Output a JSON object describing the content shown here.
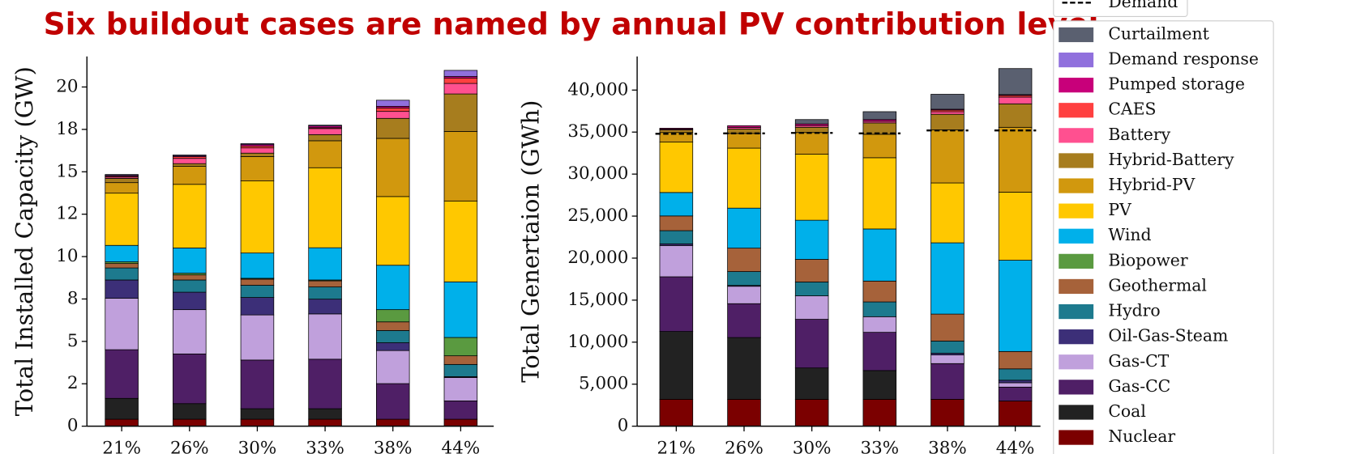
{
  "title": "Six buildout cases are named by annual PV contribution level",
  "chart_data": [
    {
      "type": "bar",
      "stacked": true,
      "ylabel": "Total Installed Capacity (GW)",
      "categories": [
        "21%",
        "26%",
        "30%",
        "33%",
        "38%",
        "44%"
      ],
      "ylim": [
        0,
        21.8
      ],
      "yticks": [
        0,
        {
          "value": 2.5,
          "label": "2"
        },
        5,
        {
          "value": 7.5,
          "label": "8"
        },
        10,
        {
          "value": 12.5,
          "label": "12"
        },
        15,
        {
          "value": 17.5,
          "label": "18"
        },
        20
      ],
      "series": [
        {
          "name": "Nuclear",
          "color": "#7b0000",
          "values": [
            0.41,
            0.41,
            0.41,
            0.41,
            0.41,
            0.41
          ]
        },
        {
          "name": "Coal",
          "color": "#222222",
          "values": [
            1.23,
            0.92,
            0.62,
            0.62,
            0,
            0
          ]
        },
        {
          "name": "Gas-CC",
          "color": "#4f1f66",
          "values": [
            2.87,
            2.93,
            2.87,
            2.92,
            2.1,
            1.08
          ]
        },
        {
          "name": "Gas-CT",
          "color": "#c0a0dc",
          "values": [
            3.03,
            2.61,
            2.66,
            2.67,
            1.95,
            1.38
          ]
        },
        {
          "name": "Oil-Gas-Steam",
          "color": "#3c2f78",
          "values": [
            1.08,
            1.03,
            1.03,
            0.87,
            0.46,
            0.05
          ]
        },
        {
          "name": "Hydro",
          "color": "#1d7a8e",
          "values": [
            0.71,
            0.72,
            0.72,
            0.72,
            0.72,
            0.72
          ]
        },
        {
          "name": "Geothermal",
          "color": "#a6623a",
          "values": [
            0.26,
            0.3,
            0.36,
            0.36,
            0.51,
            0.51
          ]
        },
        {
          "name": "Biopower",
          "color": "#5a9a40",
          "values": [
            0.1,
            0.1,
            0.05,
            0.05,
            0.72,
            1.08
          ]
        },
        {
          "name": "Wind",
          "color": "#00b0ea",
          "values": [
            0.97,
            1.49,
            1.49,
            1.9,
            2.62,
            3.28
          ]
        },
        {
          "name": "PV",
          "color": "#ffc800",
          "values": [
            3.08,
            3.75,
            4.25,
            4.72,
            4.05,
            4.77
          ]
        },
        {
          "name": "Hybrid-PV",
          "color": "#d1980e",
          "values": [
            0.62,
            1.07,
            1.44,
            1.59,
            3.43,
            4.1
          ]
        },
        {
          "name": "Hybrid-Battery",
          "color": "#a77d1e",
          "values": [
            0.25,
            0.15,
            0.2,
            0.36,
            1.18,
            2.21
          ]
        },
        {
          "name": "Battery",
          "color": "#ff5090",
          "values": [
            0.08,
            0.31,
            0.31,
            0.36,
            0.41,
            0.62
          ]
        },
        {
          "name": "CAES",
          "color": "#ff4040",
          "values": [
            0.05,
            0.1,
            0.1,
            0.05,
            0.2,
            0.31
          ]
        },
        {
          "name": "Pumped storage",
          "color": "#c8007a",
          "values": [
            0.05,
            0.05,
            0.1,
            0.1,
            0.1,
            0.1
          ]
        },
        {
          "name": "Demand response",
          "color": "#9070dd",
          "values": [
            0.05,
            0.05,
            0.05,
            0.05,
            0.36,
            0.36
          ]
        }
      ]
    },
    {
      "type": "bar",
      "stacked": true,
      "ylabel": "Total Genertaion (GWh)",
      "categories": [
        "21%",
        "26%",
        "30%",
        "33%",
        "38%",
        "44%"
      ],
      "ylim": [
        0,
        44000
      ],
      "yticks": [
        0,
        {
          "value": 5000,
          "label": "5,000"
        },
        {
          "value": 10000,
          "label": "10,000"
        },
        {
          "value": 15000,
          "label": "15,000"
        },
        {
          "value": 20000,
          "label": "20,000"
        },
        {
          "value": 25000,
          "label": "25,000"
        },
        {
          "value": 30000,
          "label": "30,000"
        },
        {
          "value": 35000,
          "label": "35,000"
        },
        {
          "value": 40000,
          "label": "40,000"
        }
      ],
      "series": [
        {
          "name": "Nuclear",
          "color": "#7b0000",
          "values": [
            3200,
            3200,
            3200,
            3200,
            3200,
            3000
          ]
        },
        {
          "name": "Coal",
          "color": "#222222",
          "values": [
            8070,
            7350,
            3730,
            3420,
            0,
            0
          ]
        },
        {
          "name": "Gas-CC",
          "color": "#4f1f66",
          "values": [
            6510,
            4030,
            5790,
            4550,
            4250,
            1650
          ]
        },
        {
          "name": "Gas-CT",
          "color": "#c0a0dc",
          "values": [
            3720,
            2070,
            2790,
            1860,
            1030,
            520
          ]
        },
        {
          "name": "Oil-Gas-Steam",
          "color": "#3c2f78",
          "values": [
            200,
            100,
            0,
            0,
            200,
            300
          ]
        },
        {
          "name": "Hydro",
          "color": "#1d7a8e",
          "values": [
            1570,
            1650,
            1650,
            1760,
            1450,
            1350
          ]
        },
        {
          "name": "Geothermal",
          "color": "#a6623a",
          "values": [
            1750,
            2790,
            2690,
            2480,
            3210,
            2070
          ]
        },
        {
          "name": "Biopower",
          "color": "#5a9a40",
          "values": [
            0,
            0,
            0,
            0,
            0,
            0
          ]
        },
        {
          "name": "Wind",
          "color": "#00b0ea",
          "values": [
            2790,
            4760,
            4660,
            6200,
            8480,
            10860
          ]
        },
        {
          "name": "PV",
          "color": "#ffc800",
          "values": [
            6000,
            7140,
            7860,
            8480,
            7130,
            8100
          ]
        },
        {
          "name": "Hybrid-PV",
          "color": "#d1980e",
          "values": [
            1140,
            1750,
            2580,
            2790,
            6310,
            7720
          ]
        },
        {
          "name": "Hybrid-Battery",
          "color": "#a77d1e",
          "values": [
            310,
            520,
            620,
            1350,
            1860,
            2790
          ]
        },
        {
          "name": "Battery",
          "color": "#ff5090",
          "values": [
            100,
            200,
            200,
            200,
            300,
            800
          ]
        },
        {
          "name": "CAES",
          "color": "#ff4040",
          "values": [
            0,
            0,
            0,
            0,
            200,
            200
          ]
        },
        {
          "name": "Pumped storage",
          "color": "#c8007a",
          "values": [
            100,
            200,
            200,
            200,
            100,
            100
          ]
        },
        {
          "name": "Demand response",
          "color": "#9070dd",
          "values": [
            0,
            0,
            0,
            0,
            0,
            0
          ]
        },
        {
          "name": "Curtailment",
          "color": "#5a6070",
          "values": [
            0,
            0,
            520,
            940,
            1780,
            3100
          ]
        },
        {
          "name": "Demand",
          "type": "line",
          "style": "dashed",
          "color": "#000000",
          "values": [
            34800,
            34850,
            34900,
            34850,
            35200,
            35200
          ]
        }
      ]
    }
  ]
}
